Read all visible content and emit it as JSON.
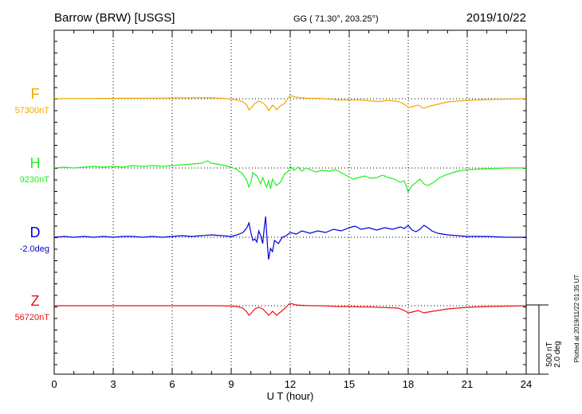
{
  "header": {
    "station": "Barrow (BRW)  [USGS]",
    "coords": "GG ( 71.30°, 203.25°)",
    "date": "2019/10/22"
  },
  "footer": {
    "plotted": "Plotted at 2019/11/22 01:35 UT",
    "scale_nt": "500 nT",
    "scale_deg": "2.0 deg"
  },
  "chart_data": {
    "type": "line",
    "title": "Barrow (BRW)  [USGS]",
    "xlabel": "U T (hour)",
    "ylabel": "",
    "xlim": [
      0,
      24
    ],
    "xticks": [
      "0",
      "3",
      "6",
      "9",
      "12",
      "15",
      "18",
      "21",
      "24"
    ],
    "grid": true,
    "series": [
      {
        "name": "F",
        "baseline": "57300nT",
        "color": "#f0a800",
        "x": [
          0,
          1,
          2,
          3,
          4,
          5,
          6,
          7,
          7.5,
          8,
          8.5,
          9,
          9.3,
          9.6,
          9.8,
          9.9,
          10.0,
          10.2,
          10.4,
          10.6,
          10.8,
          10.9,
          11.0,
          11.1,
          11.2,
          11.3,
          11.5,
          11.7,
          11.9,
          12.0,
          12.3,
          12.6,
          13.0,
          13.5,
          14.0,
          14.5,
          15.0,
          15.5,
          16.0,
          16.5,
          17.0,
          17.5,
          17.8,
          18.0,
          18.2,
          18.5,
          18.8,
          19.0,
          19.5,
          20.0,
          21.0,
          22.0,
          23.0,
          24.0
        ],
        "y": [
          0,
          0.2,
          0.3,
          0.5,
          0.6,
          0.7,
          0.9,
          1.1,
          1.3,
          1.1,
          0.5,
          -0.5,
          -1.5,
          -4,
          -8,
          -14,
          -12,
          -6,
          -3,
          -5,
          -10,
          -15,
          -12,
          -8,
          -10,
          -14,
          -9,
          -6,
          1,
          4,
          2,
          1,
          0.5,
          0.5,
          -0.5,
          -1.5,
          -1.5,
          -1.5,
          -2.5,
          -3.5,
          -2,
          -3.5,
          -7,
          -11,
          -10,
          -8,
          -12,
          -10,
          -7,
          -4,
          -2,
          -1,
          -0.5,
          0
        ]
      },
      {
        "name": "H",
        "baseline": "9230nT",
        "color": "#22ee22",
        "x": [
          0,
          0.5,
          1,
          1.5,
          2,
          2.5,
          3,
          3.5,
          4,
          4.5,
          5,
          5.5,
          6,
          6.5,
          7,
          7.5,
          7.8,
          8,
          8.5,
          9,
          9.3,
          9.6,
          9.8,
          9.9,
          10.0,
          10.1,
          10.3,
          10.5,
          10.6,
          10.8,
          10.9,
          11.0,
          11.1,
          11.3,
          11.5,
          11.7,
          11.9,
          12.0,
          12.2,
          12.4,
          12.6,
          12.8,
          13.0,
          13.3,
          13.6,
          14.0,
          14.3,
          14.6,
          14.9,
          15.2,
          15.5,
          15.8,
          16.1,
          16.4,
          16.7,
          17.0,
          17.3,
          17.6,
          17.8,
          18.0,
          18.2,
          18.4,
          18.6,
          18.8,
          19.0,
          19.3,
          19.6,
          20.0,
          20.5,
          21,
          22,
          23,
          24
        ],
        "y": [
          0,
          1,
          0,
          1,
          2,
          1,
          2,
          1,
          3,
          2,
          3,
          2,
          3,
          4,
          5,
          6,
          9,
          6,
          4,
          1,
          -2,
          -8,
          -16,
          -24,
          -18,
          -6,
          -10,
          -20,
          -12,
          -24,
          -16,
          -26,
          -14,
          -22,
          -18,
          -8,
          -4,
          2,
          -3,
          1,
          -4,
          0,
          -2,
          -5,
          -3,
          -4,
          -2,
          -6,
          -10,
          -14,
          -12,
          -10,
          -13,
          -12,
          -9,
          -12,
          -14,
          -18,
          -16,
          -30,
          -22,
          -18,
          -14,
          -20,
          -22,
          -18,
          -12,
          -8,
          -4,
          -2,
          -1,
          0,
          0
        ]
      },
      {
        "name": "D",
        "baseline": "-2.0deg",
        "color": "#0000dd",
        "x": [
          0,
          0.5,
          1,
          1.5,
          2,
          2.5,
          3,
          3.5,
          4,
          4.5,
          5,
          5.5,
          6,
          6.5,
          7,
          7.5,
          8,
          8.5,
          9,
          9.3,
          9.6,
          9.8,
          9.9,
          10.0,
          10.1,
          10.2,
          10.3,
          10.4,
          10.5,
          10.6,
          10.7,
          10.75,
          10.8,
          10.85,
          10.9,
          11.0,
          11.1,
          11.2,
          11.4,
          11.6,
          11.8,
          12.0,
          12.3,
          12.6,
          13.0,
          13.4,
          13.8,
          14.2,
          14.6,
          15.0,
          15.3,
          15.6,
          16.0,
          16.4,
          16.8,
          17.2,
          17.6,
          17.8,
          18.0,
          18.2,
          18.4,
          18.6,
          18.8,
          19.0,
          19.2,
          19.5,
          20.0,
          20.5,
          21,
          22,
          23,
          24
        ],
        "y": [
          0,
          1,
          0,
          1,
          0,
          1,
          0,
          1,
          1,
          0,
          1,
          0,
          1,
          2,
          1,
          2,
          3,
          2,
          1,
          3,
          6,
          12,
          18,
          6,
          -4,
          -2,
          -6,
          8,
          2,
          -8,
          16,
          26,
          6,
          -12,
          -28,
          -14,
          -18,
          -4,
          -8,
          0,
          2,
          6,
          4,
          8,
          5,
          8,
          6,
          10,
          8,
          12,
          14,
          10,
          12,
          9,
          12,
          10,
          13,
          11,
          15,
          9,
          7,
          10,
          15,
          12,
          8,
          5,
          3,
          2,
          1,
          1,
          0,
          0
        ]
      },
      {
        "name": "Z",
        "baseline": "56720nT",
        "color": "#ee1111",
        "x": [
          0,
          1,
          2,
          3,
          4,
          5,
          6,
          7,
          8,
          8.5,
          9,
          9.3,
          9.6,
          9.8,
          9.9,
          10.0,
          10.2,
          10.4,
          10.6,
          10.8,
          10.9,
          11.0,
          11.1,
          11.2,
          11.3,
          11.5,
          11.7,
          11.9,
          12.0,
          12.3,
          12.6,
          13.0,
          13.5,
          14.0,
          14.5,
          15.0,
          15.5,
          16.0,
          16.5,
          17.0,
          17.5,
          17.8,
          18.0,
          18.2,
          18.5,
          18.8,
          19.0,
          19.5,
          20.0,
          21.0,
          22.0,
          23.0,
          24.0
        ],
        "y": [
          0,
          0,
          0,
          0,
          0,
          0,
          0,
          0,
          0,
          0,
          -0.5,
          -1,
          -3,
          -8,
          -12,
          -10,
          -4,
          -2,
          -4,
          -9,
          -12,
          -10,
          -7,
          -9,
          -12,
          -8,
          -4,
          1,
          3,
          1,
          0.5,
          0,
          0,
          -0.5,
          -1,
          -1,
          -1.5,
          -1.5,
          -2,
          -2.5,
          -3,
          -6,
          -9,
          -8,
          -6,
          -9,
          -8,
          -6,
          -4,
          -2,
          -1,
          -0.5,
          0
        ]
      }
    ]
  }
}
